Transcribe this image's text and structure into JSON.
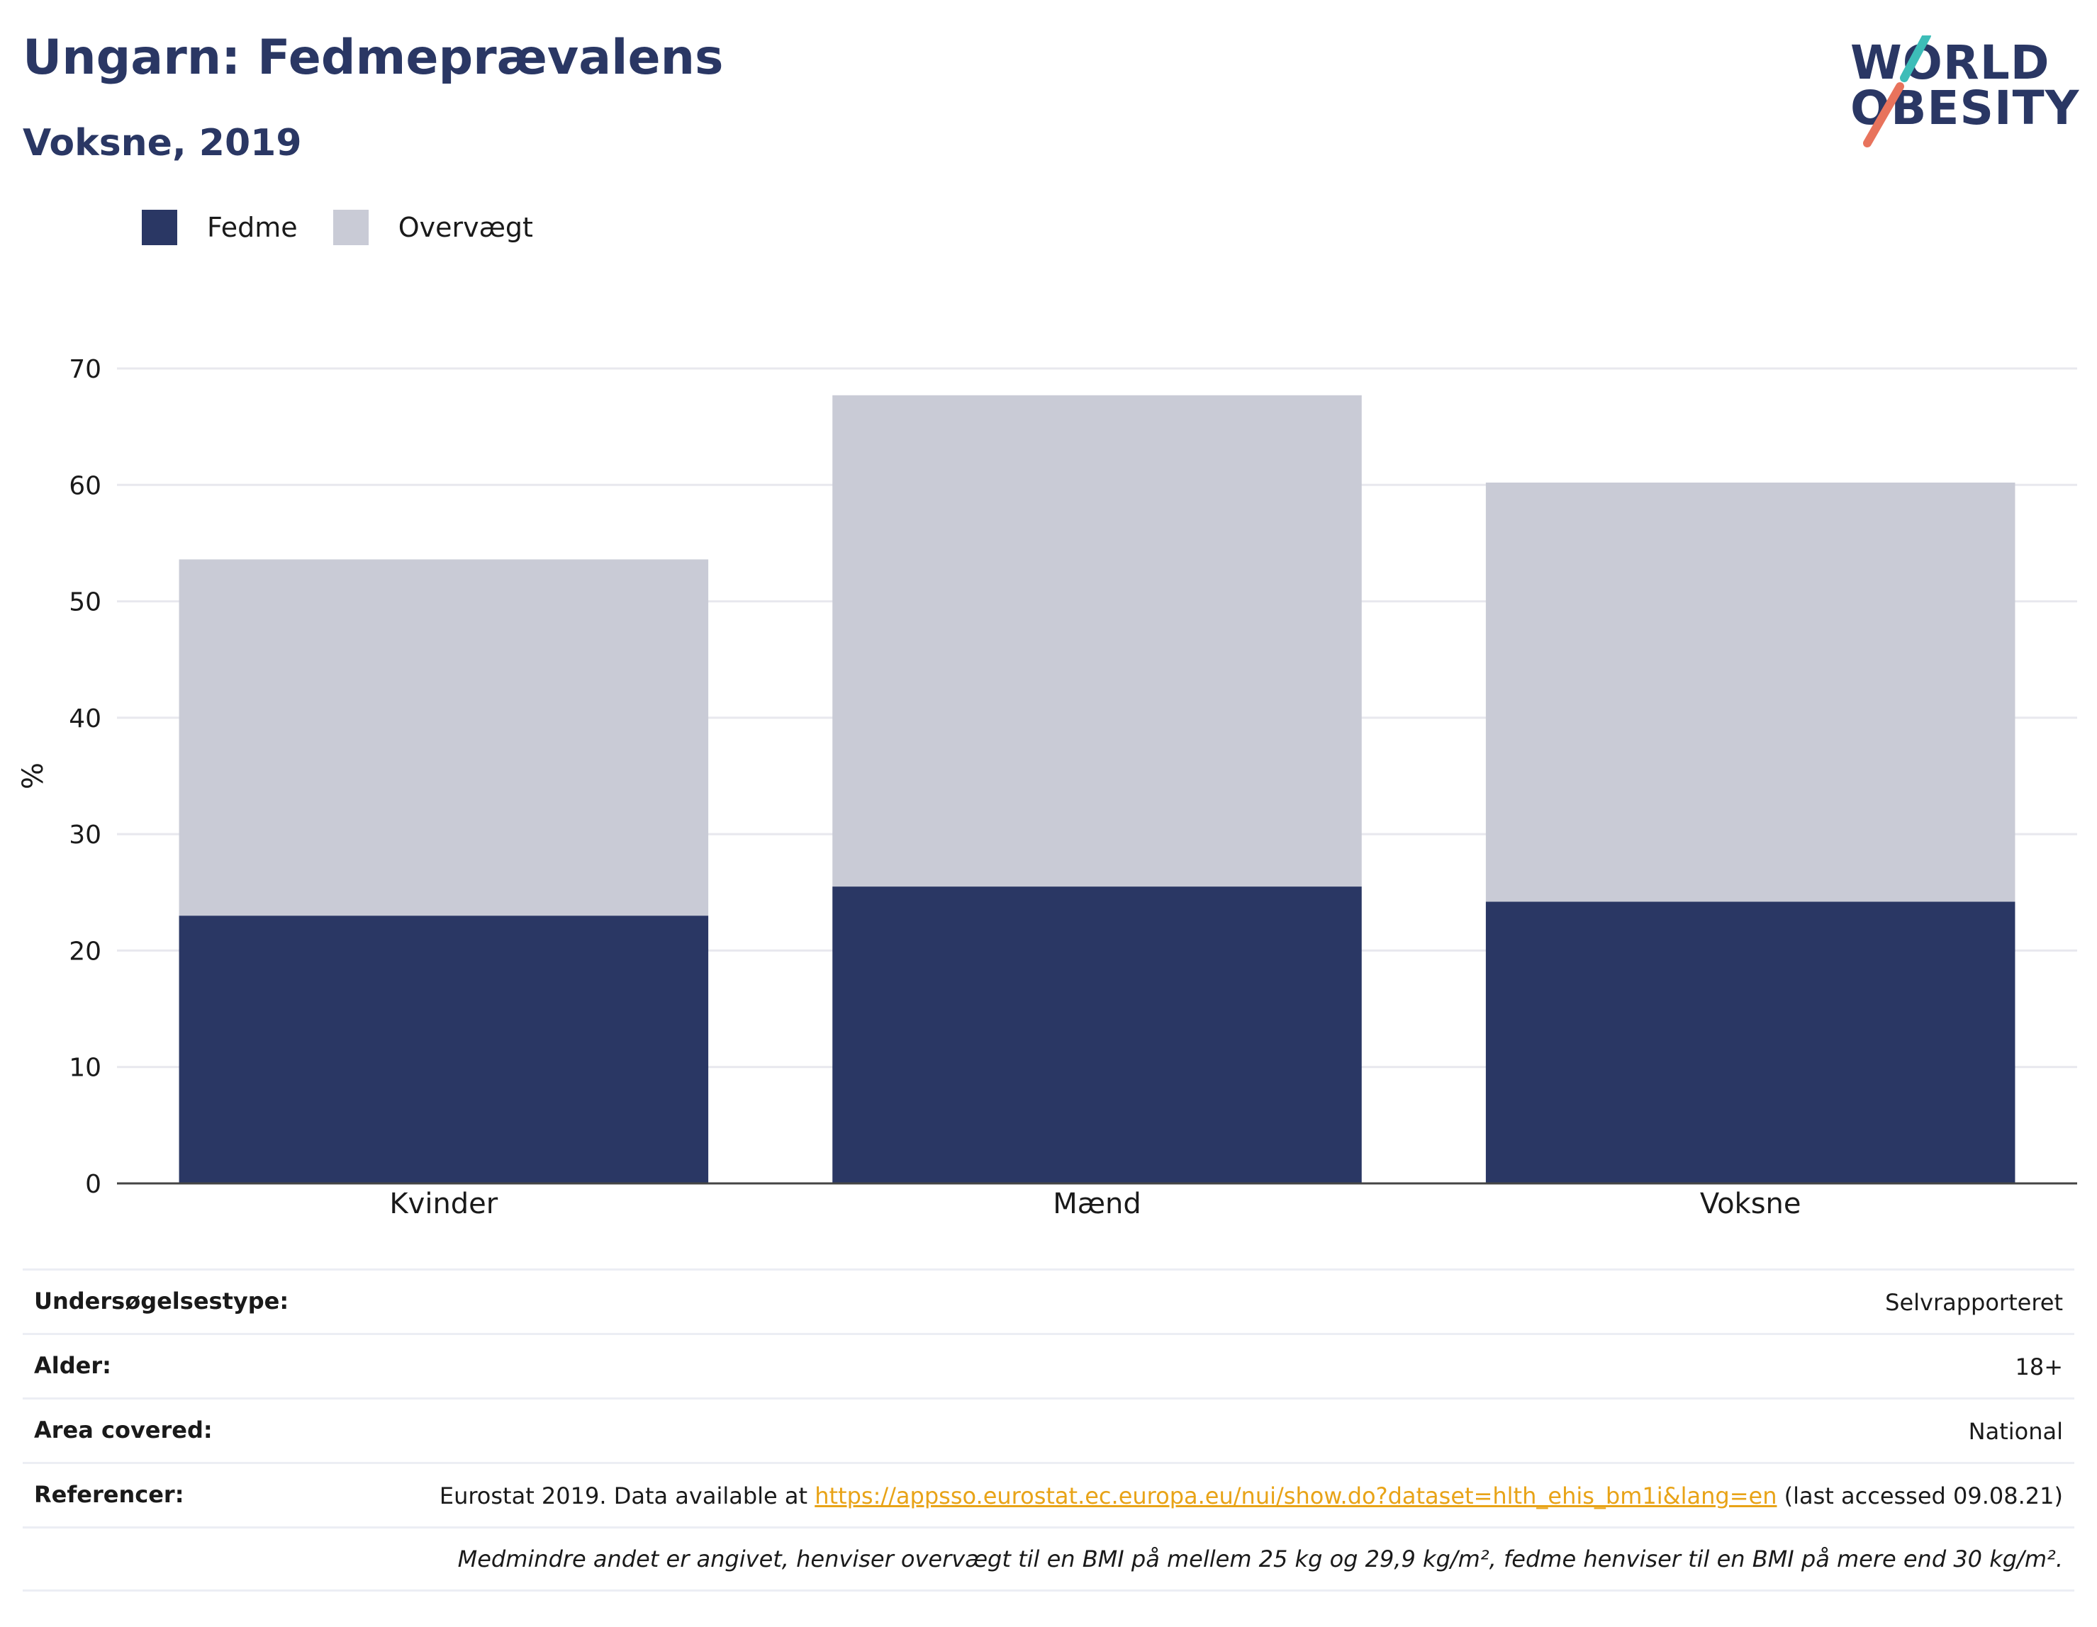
{
  "header": {
    "title": "Ungarn: Fedmeprævalens",
    "subtitle": "Voksne, 2019"
  },
  "logo": {
    "line1": "WORLD",
    "line2": "OBESITY",
    "slash_colors": [
      "#3dbdb8",
      "#e8735c"
    ]
  },
  "colors": {
    "fedme": "#2a3764",
    "overvaegt": "#c9cbd6",
    "grid": "#e8e8ee",
    "axis": "#444444"
  },
  "chart_data": {
    "type": "bar",
    "stacked": true,
    "categories": [
      "Kvinder",
      "Mænd",
      "Voksne"
    ],
    "series": [
      {
        "name": "Fedme",
        "values": [
          23.0,
          25.5,
          24.2
        ]
      },
      {
        "name": "Overvægt",
        "values": [
          30.6,
          42.2,
          36.0
        ]
      }
    ],
    "ylabel": "%",
    "ylim": [
      0,
      70
    ],
    "yticks": [
      0,
      10,
      20,
      30,
      40,
      50,
      60,
      70
    ],
    "grid": true,
    "legend_position": "top-left"
  },
  "info": {
    "rows": [
      {
        "key": "Undersøgelsestype:",
        "value": "Selvrapporteret"
      },
      {
        "key": "Alder:",
        "value": "18+"
      },
      {
        "key": "Area covered:",
        "value": "National"
      }
    ],
    "reference": {
      "key": "Referencer:",
      "prefix": "Eurostat 2019. Data available at ",
      "link": "https://appsso.eurostat.ec.europa.eu/nui/show.do?dataset=hlth_ehis_bm1i&lang=en",
      "suffix": " (last accessed 09.08.21)"
    },
    "note": "Medmindre andet er angivet, henviser overvægt til en BMI på mellem 25 kg og 29,9 kg/m², fedme henviser til en BMI på mere end 30 kg/m²."
  }
}
